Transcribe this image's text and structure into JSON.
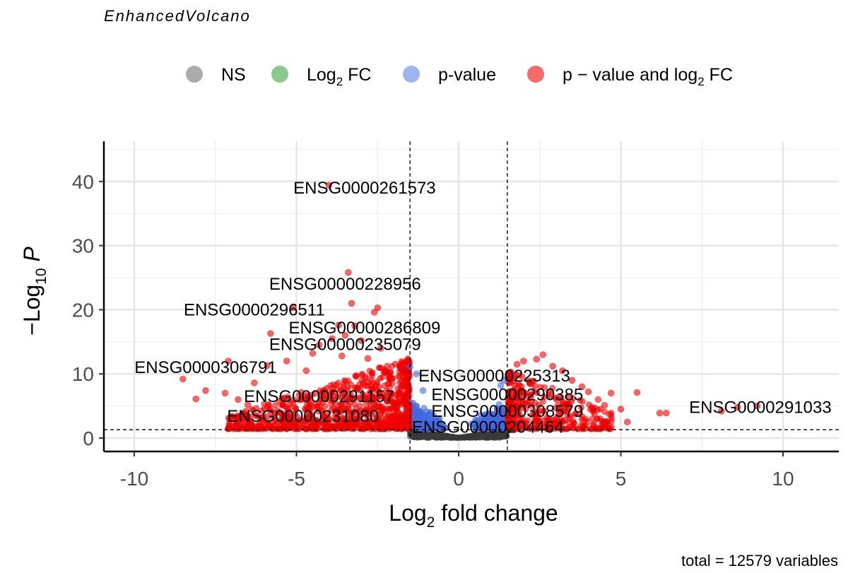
{
  "chart_data": {
    "type": "scatter",
    "subtitle": "EnhancedVolcano",
    "caption": "total = 12579 variables",
    "xlabel": {
      "pre": "Log",
      "sub": "2",
      "post": " fold change"
    },
    "ylabel": {
      "pre": "−Log",
      "sub": "10",
      "post": " P"
    },
    "xlim": [
      -10.9,
      11.7
    ],
    "ylim": [
      -2,
      46.5
    ],
    "x_ticks": [
      -10,
      -5,
      0,
      5,
      10
    ],
    "x_tick_labels": [
      "-10",
      "-5",
      "0",
      "5",
      "10"
    ],
    "y_ticks": [
      0,
      10,
      20,
      30,
      40
    ],
    "y_tick_labels": [
      "0",
      "10",
      "20",
      "30",
      "40"
    ],
    "fc_cutoff": 1.5,
    "p_cutoff_neglog10": 1.3,
    "grid": true,
    "legend_position": "top",
    "legend": [
      {
        "key": "ns",
        "label": "NS",
        "sub": "",
        "post": "",
        "color": "#808080"
      },
      {
        "key": "fc",
        "label": "Log",
        "sub": "2",
        "post": " FC",
        "color": "#4caf50"
      },
      {
        "key": "p",
        "label": "p-value",
        "sub": "",
        "post": "",
        "color": "#6a8be8"
      },
      {
        "key": "both",
        "label": "p − value and log",
        "sub": "2",
        "post": " FC",
        "color": "#ee1c1c"
      }
    ],
    "colors": {
      "ns": "#3a3a3a",
      "fc": "#4caf50",
      "p": "#4169e1",
      "both": "#ee0000"
    },
    "labels": [
      {
        "text": "ENSG0000261573",
        "x": -4.0,
        "y": 39.4,
        "lx": -2.9,
        "ly": 39.0
      },
      {
        "text": "ENSG00000228956",
        "x": -3.4,
        "y": 25.8,
        "lx": -3.5,
        "ly": 24.0
      },
      {
        "text": "ENSG0000296511",
        "x": -5.1,
        "y": 20.3,
        "lx": -6.3,
        "ly": 20.0
      },
      {
        "text": "ENSG00000286809",
        "x": -3.7,
        "y": 17.6,
        "lx": -2.9,
        "ly": 17.2
      },
      {
        "text": "ENSG00000235079",
        "x": -3.8,
        "y": 14.2,
        "lx": -3.5,
        "ly": 14.6
      },
      {
        "text": "ENSG0000306791",
        "x": -6.8,
        "y": 11.6,
        "lx": -7.8,
        "ly": 11.0
      },
      {
        "text": "ENSG00000225313",
        "x": 1.6,
        "y": 9.1,
        "lx": 1.1,
        "ly": 9.7
      },
      {
        "text": "ENSG00000291157",
        "x": -2.6,
        "y": 6.0,
        "lx": -4.3,
        "ly": 6.5
      },
      {
        "text": "ENSG00000290385",
        "x": 2.1,
        "y": 6.6,
        "lx": 1.5,
        "ly": 6.8
      },
      {
        "text": "ENSG0000291033",
        "x": 8.6,
        "y": 4.8,
        "lx": 9.3,
        "ly": 4.8
      },
      {
        "text": "ENSG00000308579",
        "x": 2.5,
        "y": 3.9,
        "lx": 1.5,
        "ly": 4.2
      },
      {
        "text": "ENSG00000231080",
        "x": -3.0,
        "y": 3.2,
        "lx": -4.8,
        "ly": 3.4
      },
      {
        "text": "ENSG00000204464",
        "x": 0.9,
        "y": 1.9,
        "lx": 0.9,
        "ly": 1.7
      }
    ],
    "extra_points": [
      {
        "x": -8.5,
        "y": 9.2,
        "c": "both"
      },
      {
        "x": -8.1,
        "y": 6.1,
        "c": "both"
      },
      {
        "x": -7.8,
        "y": 7.4,
        "c": "both"
      },
      {
        "x": -7.2,
        "y": 7.0,
        "c": "both"
      },
      {
        "x": -7.1,
        "y": 12.0,
        "c": "both"
      },
      {
        "x": -6.8,
        "y": 6.0,
        "c": "both"
      },
      {
        "x": -6.5,
        "y": 5.2,
        "c": "both"
      },
      {
        "x": -6.3,
        "y": 8.6,
        "c": "both"
      },
      {
        "x": -5.9,
        "y": 11.3,
        "c": "both"
      },
      {
        "x": -5.8,
        "y": 16.3,
        "c": "both"
      },
      {
        "x": -5.3,
        "y": 12.0,
        "c": "both"
      },
      {
        "x": -5.1,
        "y": 20.3,
        "c": "both"
      },
      {
        "x": -4.7,
        "y": 10.5,
        "c": "both"
      },
      {
        "x": -4.5,
        "y": 13.2,
        "c": "both"
      },
      {
        "x": -4.3,
        "y": 14.5,
        "c": "both"
      },
      {
        "x": -4.0,
        "y": 39.4,
        "c": "both"
      },
      {
        "x": -3.9,
        "y": 15.5,
        "c": "both"
      },
      {
        "x": -3.7,
        "y": 17.6,
        "c": "both"
      },
      {
        "x": -3.6,
        "y": 12.8,
        "c": "both"
      },
      {
        "x": -3.5,
        "y": 16.0,
        "c": "both"
      },
      {
        "x": -3.4,
        "y": 25.8,
        "c": "both"
      },
      {
        "x": -3.3,
        "y": 21.0,
        "c": "both"
      },
      {
        "x": -3.2,
        "y": 17.5,
        "c": "both"
      },
      {
        "x": -3.0,
        "y": 15.2,
        "c": "both"
      },
      {
        "x": -2.8,
        "y": 12.4,
        "c": "both"
      },
      {
        "x": -2.6,
        "y": 19.6,
        "c": "both"
      },
      {
        "x": -2.5,
        "y": 20.3,
        "c": "both"
      },
      {
        "x": -2.4,
        "y": 14.0,
        "c": "both"
      },
      {
        "x": -2.2,
        "y": 11.2,
        "c": "both"
      },
      {
        "x": -2.1,
        "y": 10.3,
        "c": "both"
      },
      {
        "x": -1.8,
        "y": 11.5,
        "c": "both"
      },
      {
        "x": -1.6,
        "y": 9.0,
        "c": "both"
      },
      {
        "x": -1.5,
        "y": 11.1,
        "c": "p"
      },
      {
        "x": -1.3,
        "y": 10.0,
        "c": "p"
      },
      {
        "x": -1.1,
        "y": 7.4,
        "c": "p"
      },
      {
        "x": 1.3,
        "y": 8.2,
        "c": "p"
      },
      {
        "x": 1.4,
        "y": 9.0,
        "c": "p"
      },
      {
        "x": 1.8,
        "y": 11.5,
        "c": "both"
      },
      {
        "x": 2.0,
        "y": 12.0,
        "c": "both"
      },
      {
        "x": 2.4,
        "y": 12.3,
        "c": "both"
      },
      {
        "x": 2.6,
        "y": 13.0,
        "c": "both"
      },
      {
        "x": 2.9,
        "y": 11.2,
        "c": "both"
      },
      {
        "x": 3.2,
        "y": 10.5,
        "c": "both"
      },
      {
        "x": 3.5,
        "y": 9.0,
        "c": "both"
      },
      {
        "x": 3.8,
        "y": 8.0,
        "c": "both"
      },
      {
        "x": 4.0,
        "y": 7.2,
        "c": "both"
      },
      {
        "x": 4.3,
        "y": 6.0,
        "c": "both"
      },
      {
        "x": 4.5,
        "y": 5.1,
        "c": "both"
      },
      {
        "x": 4.7,
        "y": 7.0,
        "c": "both"
      },
      {
        "x": 5.0,
        "y": 4.5,
        "c": "both"
      },
      {
        "x": 5.2,
        "y": 2.5,
        "c": "both"
      },
      {
        "x": 5.5,
        "y": 7.1,
        "c": "both"
      },
      {
        "x": 6.2,
        "y": 3.9,
        "c": "both"
      },
      {
        "x": 6.4,
        "y": 3.9,
        "c": "both"
      },
      {
        "x": 8.1,
        "y": 4.2,
        "c": "both"
      },
      {
        "x": 8.6,
        "y": 4.8,
        "c": "both"
      },
      {
        "x": 9.2,
        "y": 5.0,
        "c": "both"
      }
    ]
  }
}
